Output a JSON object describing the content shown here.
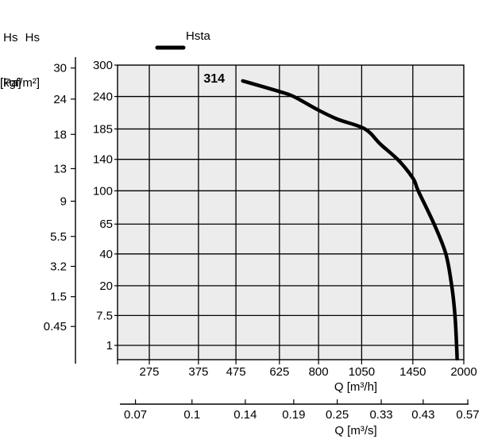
{
  "axes_headers": {
    "kgf": {
      "line1": "Hs",
      "line2": "[kgf/m²]"
    },
    "pa": {
      "line1": "Hs",
      "line2": "[Pa]"
    }
  },
  "legend": {
    "label": "Hsta"
  },
  "chart_data": {
    "type": "line",
    "title": "",
    "x_axis": {
      "label": "Q [m³/h]",
      "scale": "log",
      "ticks": [
        275,
        375,
        475,
        625,
        800,
        1050,
        1450,
        2000
      ]
    },
    "x_axis_secondary": {
      "label": "Q [m³/s]",
      "ticks": [
        0.07,
        0.1,
        0.14,
        0.19,
        0.25,
        0.33,
        0.43,
        0.57
      ],
      "m3h_per_unit": 3600
    },
    "y_axis_primary": {
      "name": "Hs [Pa]",
      "scale": "sqrt",
      "ticks": [
        300,
        240,
        185,
        140,
        100,
        65,
        40,
        20,
        7.5,
        1
      ]
    },
    "y_axis_secondary": {
      "name": "Hs [kgf/m²]",
      "ticks": [
        30,
        24,
        18,
        13,
        9,
        5.5,
        3.2,
        1.5,
        0.45
      ],
      "pa_per_unit": 9.80665
    },
    "grid": true,
    "legend_position": "top",
    "plot_bg": "#ececec",
    "line_color": "#000000",
    "series": [
      {
        "name": "Hsta",
        "label": "314",
        "points_q_pa": [
          [
            496,
            269
          ],
          [
            625,
            249
          ],
          [
            684,
            240
          ],
          [
            794,
            217
          ],
          [
            900,
            201
          ],
          [
            1072,
            185
          ],
          [
            1180,
            162
          ],
          [
            1323,
            139
          ],
          [
            1452,
            115
          ],
          [
            1500,
            100
          ],
          [
            1658,
            65
          ],
          [
            1786,
            40
          ],
          [
            1853,
            20
          ],
          [
            1892,
            7.5
          ],
          [
            1911,
            1
          ],
          [
            1918,
            0.05
          ]
        ]
      }
    ]
  }
}
